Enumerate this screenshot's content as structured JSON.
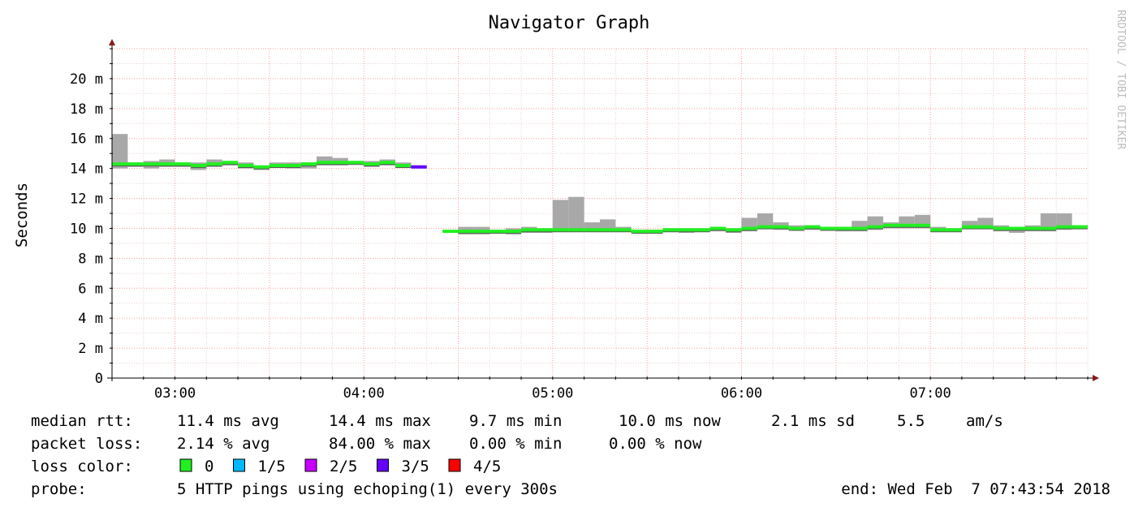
{
  "chart_data": {
    "type": "area",
    "title": "Navigator Graph",
    "ylabel": "Seconds",
    "xlabel": "",
    "watermark": "RRDTOOL / TOBI OETIKER",
    "y_unit": "ms",
    "ylim": [
      0,
      22
    ],
    "y_ticks": [
      {
        "value": 0,
        "label": "0"
      },
      {
        "value": 2,
        "label": "2 m"
      },
      {
        "value": 4,
        "label": "4 m"
      },
      {
        "value": 6,
        "label": "6 m"
      },
      {
        "value": 8,
        "label": "8 m"
      },
      {
        "value": 10,
        "label": "10 m"
      },
      {
        "value": 12,
        "label": "12 m"
      },
      {
        "value": 14,
        "label": "14 m"
      },
      {
        "value": 16,
        "label": "16 m"
      },
      {
        "value": 18,
        "label": "18 m"
      },
      {
        "value": 20,
        "label": "20 m"
      }
    ],
    "xlim": [
      "02:40",
      "07:50"
    ],
    "x_ticks": [
      "03:00",
      "04:00",
      "05:00",
      "06:00",
      "07:00"
    ],
    "grid": true,
    "step_minutes": 5,
    "series": [
      {
        "name": "median rtt",
        "start": "02:40",
        "points": [
          {
            "t": "02:40",
            "median": 14.3,
            "lo": 14.0,
            "hi": 16.3,
            "loss": "0"
          },
          {
            "t": "02:45",
            "median": 14.3,
            "lo": 14.1,
            "hi": 14.4,
            "loss": "0"
          },
          {
            "t": "02:50",
            "median": 14.3,
            "lo": 14.0,
            "hi": 14.5,
            "loss": "0"
          },
          {
            "t": "02:55",
            "median": 14.3,
            "lo": 14.1,
            "hi": 14.6,
            "loss": "0"
          },
          {
            "t": "03:00",
            "median": 14.3,
            "lo": 14.1,
            "hi": 14.4,
            "loss": "0"
          },
          {
            "t": "03:05",
            "median": 14.2,
            "lo": 13.9,
            "hi": 14.4,
            "loss": "0"
          },
          {
            "t": "03:10",
            "median": 14.3,
            "lo": 14.1,
            "hi": 14.6,
            "loss": "0"
          },
          {
            "t": "03:15",
            "median": 14.4,
            "lo": 14.2,
            "hi": 14.5,
            "loss": "0"
          },
          {
            "t": "03:20",
            "median": 14.2,
            "lo": 14.0,
            "hi": 14.4,
            "loss": "0"
          },
          {
            "t": "03:25",
            "median": 14.1,
            "lo": 13.9,
            "hi": 14.2,
            "loss": "0"
          },
          {
            "t": "03:30",
            "median": 14.2,
            "lo": 14.1,
            "hi": 14.4,
            "loss": "0"
          },
          {
            "t": "03:35",
            "median": 14.2,
            "lo": 14.0,
            "hi": 14.4,
            "loss": "0"
          },
          {
            "t": "03:40",
            "median": 14.3,
            "lo": 14.0,
            "hi": 14.4,
            "loss": "0"
          },
          {
            "t": "03:45",
            "median": 14.4,
            "lo": 14.2,
            "hi": 14.8,
            "loss": "0"
          },
          {
            "t": "03:50",
            "median": 14.4,
            "lo": 14.2,
            "hi": 14.7,
            "loss": "0"
          },
          {
            "t": "03:55",
            "median": 14.4,
            "lo": 14.3,
            "hi": 14.5,
            "loss": "0"
          },
          {
            "t": "04:00",
            "median": 14.3,
            "lo": 14.1,
            "hi": 14.5,
            "loss": "0"
          },
          {
            "t": "04:05",
            "median": 14.4,
            "lo": 14.2,
            "hi": 14.6,
            "loss": "0"
          },
          {
            "t": "04:10",
            "median": 14.2,
            "lo": 14.1,
            "hi": 14.4,
            "loss": "0"
          },
          {
            "t": "04:15",
            "median": 14.1,
            "lo": 14.1,
            "hi": 14.1,
            "loss": "3/5"
          },
          {
            "t": "04:20",
            "median": null,
            "loss": null
          },
          {
            "t": "04:25",
            "median": 9.8,
            "lo": 9.8,
            "hi": 9.8,
            "loss": "0"
          },
          {
            "t": "04:30",
            "median": 9.8,
            "lo": 9.6,
            "hi": 10.1,
            "loss": "0"
          },
          {
            "t": "04:35",
            "median": 9.8,
            "lo": 9.6,
            "hi": 10.1,
            "loss": "0"
          },
          {
            "t": "04:40",
            "median": 9.8,
            "lo": 9.7,
            "hi": 9.9,
            "loss": "0"
          },
          {
            "t": "04:45",
            "median": 9.8,
            "lo": 9.6,
            "hi": 10.0,
            "loss": "0"
          },
          {
            "t": "04:50",
            "median": 9.9,
            "lo": 9.7,
            "hi": 10.1,
            "loss": "0"
          },
          {
            "t": "04:55",
            "median": 9.9,
            "lo": 9.7,
            "hi": 10.0,
            "loss": "0"
          },
          {
            "t": "05:00",
            "median": 9.9,
            "lo": 9.8,
            "hi": 11.9,
            "loss": "0"
          },
          {
            "t": "05:05",
            "median": 9.9,
            "lo": 9.8,
            "hi": 12.1,
            "loss": "0"
          },
          {
            "t": "05:10",
            "median": 9.9,
            "lo": 9.8,
            "hi": 10.4,
            "loss": "0"
          },
          {
            "t": "05:15",
            "median": 9.9,
            "lo": 9.8,
            "hi": 10.6,
            "loss": "0"
          },
          {
            "t": "05:20",
            "median": 9.9,
            "lo": 9.8,
            "hi": 10.1,
            "loss": "0"
          },
          {
            "t": "05:25",
            "median": 9.8,
            "lo": 9.7,
            "hi": 9.9,
            "loss": "0"
          },
          {
            "t": "05:30",
            "median": 9.8,
            "lo": 9.7,
            "hi": 9.9,
            "loss": "0"
          },
          {
            "t": "05:35",
            "median": 9.9,
            "lo": 9.8,
            "hi": 10.0,
            "loss": "0"
          },
          {
            "t": "05:40",
            "median": 9.9,
            "lo": 9.7,
            "hi": 10.0,
            "loss": "0"
          },
          {
            "t": "05:45",
            "median": 9.9,
            "lo": 9.8,
            "hi": 10.0,
            "loss": "0"
          },
          {
            "t": "05:50",
            "median": 10.0,
            "lo": 9.8,
            "hi": 10.1,
            "loss": "0"
          },
          {
            "t": "05:55",
            "median": 9.9,
            "lo": 9.7,
            "hi": 10.0,
            "loss": "0"
          },
          {
            "t": "06:00",
            "median": 10.0,
            "lo": 9.8,
            "hi": 10.7,
            "loss": "0"
          },
          {
            "t": "06:05",
            "median": 10.1,
            "lo": 10.0,
            "hi": 11.0,
            "loss": "0"
          },
          {
            "t": "06:10",
            "median": 10.1,
            "lo": 9.9,
            "hi": 10.4,
            "loss": "0"
          },
          {
            "t": "06:15",
            "median": 10.0,
            "lo": 9.9,
            "hi": 10.2,
            "loss": "0"
          },
          {
            "t": "06:20",
            "median": 10.1,
            "lo": 9.9,
            "hi": 10.2,
            "loss": "0"
          },
          {
            "t": "06:25",
            "median": 10.0,
            "lo": 9.9,
            "hi": 10.1,
            "loss": "0"
          },
          {
            "t": "06:30",
            "median": 10.0,
            "lo": 9.8,
            "hi": 10.1,
            "loss": "0"
          },
          {
            "t": "06:35",
            "median": 10.0,
            "lo": 9.8,
            "hi": 10.5,
            "loss": "0"
          },
          {
            "t": "06:40",
            "median": 10.1,
            "lo": 9.9,
            "hi": 10.8,
            "loss": "0"
          },
          {
            "t": "06:45",
            "median": 10.2,
            "lo": 10.0,
            "hi": 10.4,
            "loss": "0"
          },
          {
            "t": "06:50",
            "median": 10.2,
            "lo": 10.0,
            "hi": 10.8,
            "loss": "0"
          },
          {
            "t": "06:55",
            "median": 10.2,
            "lo": 10.0,
            "hi": 10.9,
            "loss": "0"
          },
          {
            "t": "07:00",
            "median": 9.9,
            "lo": 9.8,
            "hi": 10.1,
            "loss": "0"
          },
          {
            "t": "07:05",
            "median": 9.9,
            "lo": 9.8,
            "hi": 10.0,
            "loss": "0"
          },
          {
            "t": "07:10",
            "median": 10.1,
            "lo": 10.0,
            "hi": 10.5,
            "loss": "0"
          },
          {
            "t": "07:15",
            "median": 10.1,
            "lo": 10.0,
            "hi": 10.7,
            "loss": "0"
          },
          {
            "t": "07:20",
            "median": 10.0,
            "lo": 9.8,
            "hi": 10.2,
            "loss": "0"
          },
          {
            "t": "07:25",
            "median": 10.0,
            "lo": 9.7,
            "hi": 10.1,
            "loss": "0"
          },
          {
            "t": "07:30",
            "median": 10.0,
            "lo": 9.8,
            "hi": 10.2,
            "loss": "0"
          },
          {
            "t": "07:35",
            "median": 10.0,
            "lo": 9.8,
            "hi": 11.0,
            "loss": "0"
          },
          {
            "t": "07:40",
            "median": 10.1,
            "lo": 9.9,
            "hi": 11.0,
            "loss": "0"
          },
          {
            "t": "07:45",
            "median": 10.1,
            "lo": 10.0,
            "hi": 10.2,
            "loss": "0"
          }
        ]
      }
    ],
    "colors": {
      "smoke": "#a8a8a8",
      "smoke_median": "#5a5a5a",
      "grid_major": "#ff9a9a",
      "grid_minor": "#e8d0d0",
      "axis": "#000000",
      "arrow": "#8b1a1a",
      "loss_0": "#20f020",
      "loss_1_5": "#00b8ff",
      "loss_2_5": "#c800ff",
      "loss_3_5": "#6400ff",
      "loss_4_5": "#ff0000"
    }
  },
  "legend": {
    "rtt_label": "median rtt:",
    "rtt_avg": "11.4 ms avg",
    "rtt_max": "14.4 ms max",
    "rtt_min": "9.7 ms min",
    "rtt_now": "10.0 ms now",
    "rtt_sd": "2.1 ms sd",
    "rtt_ams": "5.5",
    "rtt_ams_unit": "am/s",
    "loss_label": "packet loss:",
    "loss_avg": "2.14 % avg",
    "loss_max": "84.00 % max",
    "loss_min": "0.00 % min",
    "loss_now": "0.00 % now",
    "color_label": "loss color:",
    "loss_colors": [
      {
        "label": "0",
        "color": "#20f020"
      },
      {
        "label": "1/5",
        "color": "#00b8ff"
      },
      {
        "label": "2/5",
        "color": "#c800ff"
      },
      {
        "label": "3/5",
        "color": "#6400ff"
      },
      {
        "label": "4/5",
        "color": "#ff0000"
      }
    ],
    "probe_label": "probe:",
    "probe_text": "5 HTTP pings using echoping(1) every 300s",
    "end_text": "end: Wed Feb  7 07:43:54 2018"
  }
}
